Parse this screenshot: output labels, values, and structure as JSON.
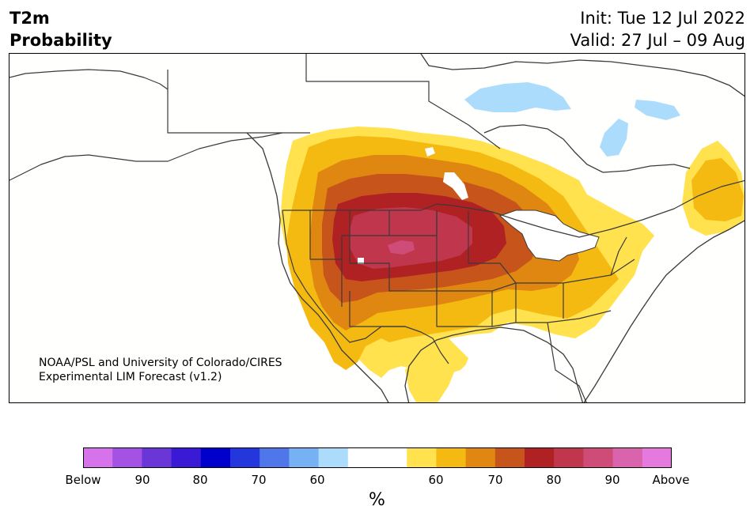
{
  "header": {
    "title_line1": "T2m",
    "title_line2": "Probability",
    "init": "Init: Tue 12 Jul 2022",
    "valid": "Valid: 27 Jul – 09 Aug"
  },
  "credit": {
    "line1": "NOAA/PSL and University of Colorado/CIRES",
    "line2": "Experimental LIM Forecast (v1.2)"
  },
  "colorbar": {
    "colors": [
      "#d673ea",
      "#a352e3",
      "#6b36d8",
      "#3a1ad4",
      "#0000cc",
      "#2337dd",
      "#4f77ea",
      "#76b1f3",
      "#acdcfb",
      "#ffffff",
      "#ffffff",
      "#ffe24d",
      "#f5ba12",
      "#df8710",
      "#c7551b",
      "#b02124",
      "#c0364c",
      "#cf4c78",
      "#da63ad",
      "#e679de"
    ],
    "labels": [
      "Below",
      "90",
      "80",
      "70",
      "60",
      "60",
      "70",
      "80",
      "90",
      "Above"
    ],
    "unit": "%"
  },
  "map": {
    "colors": {
      "lake": "#acdcfb",
      "p60": "#ffe24d",
      "p65": "#f5ba12",
      "p70": "#df8710",
      "p75": "#c7551b",
      "p80": "#b02124",
      "p85": "#c0364c",
      "p90": "#cf4c78",
      "border": "#3a3a3a"
    }
  }
}
